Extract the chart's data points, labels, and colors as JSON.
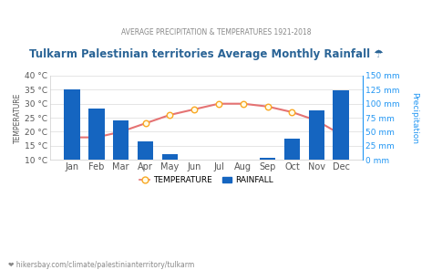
{
  "title": "Tulkarm Palestinian territories Average Monthly Rainfall ☂",
  "subtitle": "AVERAGE PRECIPITATION & TEMPERATURES 1921-2018",
  "months": [
    "Jan",
    "Feb",
    "Mar",
    "Apr",
    "May",
    "Jun",
    "Jul",
    "Aug",
    "Sep",
    "Oct",
    "Nov",
    "Dec"
  ],
  "rainfall_mm": [
    126,
    91,
    71,
    33,
    10,
    1,
    0,
    1,
    3,
    38,
    88,
    124
  ],
  "temperature_c": [
    18,
    18,
    20,
    23,
    26,
    28,
    30,
    30,
    29,
    27,
    24,
    19
  ],
  "temp_ylim": [
    10,
    40
  ],
  "rain_ylim": [
    0,
    150
  ],
  "temp_yticks": [
    10,
    15,
    20,
    25,
    30,
    35,
    40
  ],
  "rain_yticks": [
    0,
    25,
    50,
    75,
    100,
    125,
    150
  ],
  "temp_ytick_labels": [
    "10 °C",
    "15 °C",
    "20 °C",
    "25 °C",
    "30 °C",
    "35 °C",
    "40 °C"
  ],
  "rain_ytick_labels": [
    "0 mm",
    "25 mm",
    "50 mm",
    "75 mm",
    "100 mm",
    "125 mm",
    "150 mm"
  ],
  "bar_color": "#1565C0",
  "line_color": "#E57373",
  "marker_facecolor": "#FFFDE7",
  "marker_edgecolor": "#F9A825",
  "bg_color": "#ffffff",
  "plot_bg_color": "#ffffff",
  "ylabel_left": "TEMPERATURE",
  "ylabel_right": "Precipitation",
  "legend_temp": "TEMPERATURE",
  "legend_rain": "RAINFALL",
  "footer": "❤ hikersbay.com/climate/palestinianterritory/tulkarm",
  "title_color": "#2a6496",
  "subtitle_color": "#888888",
  "right_axis_color": "#2196F3",
  "left_axis_color": "#555555",
  "grid_color": "#e0e0e0",
  "xtick_color": "#555555"
}
